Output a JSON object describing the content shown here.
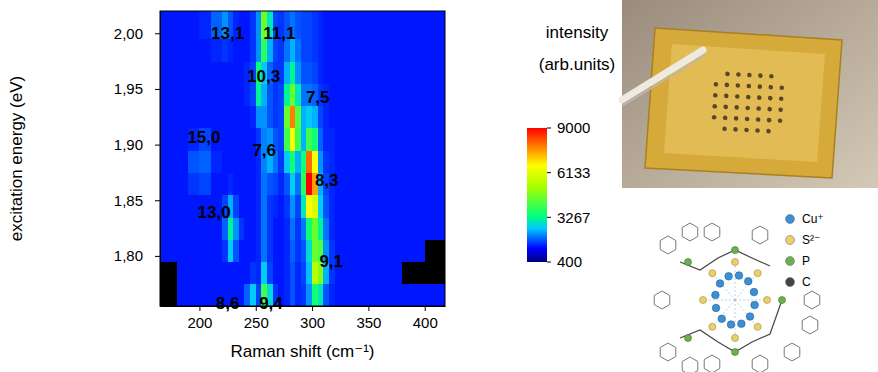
{
  "chart_data": {
    "type": "heatmap",
    "x_label": "Raman shift (cm⁻¹)",
    "y_label": "excitation energy (eV)",
    "xlim": [
      165,
      418
    ],
    "ylim": [
      1.755,
      2.02
    ],
    "xticks": [
      200,
      250,
      300,
      350,
      400
    ],
    "yticks": [
      {
        "value": 1.8,
        "label": "1,80"
      },
      {
        "value": 1.85,
        "label": "1,85"
      },
      {
        "value": 1.9,
        "label": "1,90"
      },
      {
        "value": 1.95,
        "label": "1,95"
      },
      {
        "value": 2.0,
        "label": "2,00"
      }
    ],
    "grid": false,
    "x_bins": [
      165,
      180,
      190,
      200,
      210,
      220,
      225,
      230,
      235,
      240,
      245,
      250,
      255,
      260,
      265,
      270,
      275,
      280,
      285,
      290,
      295,
      300,
      305,
      310,
      315,
      320,
      340,
      360,
      380,
      400,
      418
    ],
    "y_bins": [
      1.755,
      1.775,
      1.795,
      1.815,
      1.835,
      1.855,
      1.875,
      1.895,
      1.915,
      1.935,
      1.955,
      1.975,
      1.995,
      2.02
    ],
    "cells": [
      [
        300,
        1400,
        1400,
        1400,
        1400,
        1400,
        1400,
        1400,
        1400,
        1900,
        2600,
        1700,
        4000,
        2800,
        1600,
        1400,
        1500,
        1800,
        1500,
        1600,
        2200,
        3500,
        3000,
        1800,
        1500,
        1400,
        1400,
        1400,
        1400,
        1400
      ],
      [
        300,
        1400,
        1400,
        1400,
        1400,
        1400,
        1400,
        1400,
        1400,
        1400,
        1600,
        1500,
        2600,
        1700,
        1400,
        1400,
        1500,
        1800,
        1500,
        1700,
        2500,
        5500,
        4800,
        2400,
        1600,
        1400,
        1400,
        1400,
        300,
        300
      ],
      [
        1400,
        1400,
        1400,
        1400,
        1400,
        1600,
        2600,
        1800,
        1400,
        1400,
        1400,
        1500,
        2000,
        1600,
        1400,
        1400,
        1500,
        1900,
        1600,
        1800,
        2800,
        4500,
        4200,
        2200,
        1600,
        1400,
        1400,
        1400,
        1400,
        300
      ],
      [
        1400,
        1400,
        1400,
        1400,
        1400,
        1900,
        3200,
        2200,
        1600,
        1400,
        1400,
        1500,
        2000,
        1600,
        1400,
        1400,
        1500,
        2000,
        1600,
        2000,
        3500,
        4500,
        3200,
        2000,
        1500,
        1400,
        1400,
        1400,
        1400,
        1400
      ],
      [
        1400,
        1400,
        1400,
        1400,
        1400,
        1700,
        2400,
        1700,
        1400,
        1400,
        1400,
        1500,
        2000,
        1600,
        1500,
        1400,
        1600,
        2200,
        1700,
        3000,
        6500,
        6000,
        2600,
        1800,
        1500,
        1400,
        1400,
        1400,
        1400,
        1400
      ],
      [
        1400,
        1400,
        1600,
        1700,
        1400,
        1400,
        1500,
        1400,
        1400,
        1400,
        1400,
        1500,
        2000,
        1800,
        1700,
        1500,
        1800,
        2600,
        2000,
        3800,
        9000,
        7500,
        2400,
        1700,
        1500,
        1400,
        1400,
        1400,
        1400,
        1400
      ],
      [
        1400,
        1400,
        1800,
        1900,
        1500,
        1400,
        1400,
        1400,
        1400,
        1400,
        1400,
        1500,
        2100,
        2400,
        2000,
        1600,
        2600,
        3500,
        2400,
        3500,
        8000,
        6500,
        2200,
        1600,
        1500,
        1400,
        1400,
        1400,
        1400,
        1400
      ],
      [
        1400,
        1400,
        1500,
        1700,
        1400,
        1400,
        1400,
        1400,
        1400,
        1400,
        1400,
        1600,
        2100,
        2200,
        1800,
        1700,
        4000,
        6500,
        4000,
        2400,
        4000,
        3500,
        1900,
        1500,
        1500,
        1400,
        1400,
        1400,
        1400,
        1400
      ],
      [
        1400,
        1400,
        1400,
        1400,
        1400,
        1400,
        1400,
        1400,
        1400,
        1400,
        1500,
        2200,
        2200,
        1800,
        1600,
        1700,
        4500,
        7800,
        4200,
        2400,
        2600,
        2400,
        1700,
        1500,
        1400,
        1400,
        1400,
        1400,
        1400,
        1400
      ],
      [
        1400,
        1400,
        1400,
        1400,
        1400,
        1400,
        1400,
        1400,
        1400,
        1500,
        1700,
        3200,
        2400,
        1800,
        1600,
        1700,
        3200,
        4500,
        3000,
        2000,
        2000,
        1900,
        1600,
        1500,
        1400,
        1400,
        1400,
        1400,
        1400,
        1400
      ],
      [
        1400,
        1400,
        1400,
        1400,
        1400,
        1400,
        1400,
        1400,
        1400,
        1500,
        1700,
        3400,
        2600,
        1900,
        1600,
        1600,
        2400,
        3200,
        2200,
        1800,
        1800,
        1700,
        1500,
        1400,
        1400,
        1400,
        1400,
        1400,
        1400,
        1400
      ],
      [
        1400,
        1400,
        1400,
        1400,
        1500,
        1600,
        1500,
        1400,
        1400,
        1400,
        1600,
        2200,
        3800,
        2400,
        1700,
        1600,
        2000,
        2400,
        2000,
        1700,
        1700,
        1600,
        1500,
        1400,
        1400,
        1400,
        1400,
        1400,
        1400,
        1400
      ],
      [
        1400,
        1400,
        1400,
        1500,
        1900,
        2200,
        1800,
        1500,
        1400,
        1400,
        1600,
        2200,
        4500,
        3000,
        1700,
        1600,
        1800,
        2000,
        1800,
        1700,
        1700,
        1600,
        1500,
        1400,
        1400,
        1400,
        1400,
        1400,
        1400,
        1400
      ]
    ],
    "colorbar": {
      "title": [
        "intensity",
        "(arb.units)"
      ],
      "lim": [
        400,
        9000
      ],
      "ticks": [
        400,
        3267,
        6133,
        9000
      ]
    },
    "annotations": [
      {
        "text": "13,1",
        "x": 225,
        "y": 2.0
      },
      {
        "text": "11,1",
        "x": 271,
        "y": 2.0
      },
      {
        "text": "10,3",
        "x": 257,
        "y": 1.962
      },
      {
        "text": "7,5",
        "x": 305,
        "y": 1.943
      },
      {
        "text": "15,0",
        "x": 204,
        "y": 1.907
      },
      {
        "text": "7,6",
        "x": 257.5,
        "y": 1.895
      },
      {
        "text": "8,3",
        "x": 313,
        "y": 1.868
      },
      {
        "text": "13,0",
        "x": 213,
        "y": 1.839
      },
      {
        "text": "9,1",
        "x": 317,
        "y": 1.795
      },
      {
        "text": "8,6",
        "x": 225,
        "y": 1.758
      },
      {
        "text": "9,4",
        "x": 263.5,
        "y": 1.758
      }
    ]
  },
  "structure": {
    "legend": [
      {
        "label": "Cu⁺",
        "color": "#3a8fd6"
      },
      {
        "label": "S²⁻",
        "color": "#e8d070"
      },
      {
        "label": "P",
        "color": "#6ab04c"
      },
      {
        "label": "C",
        "color": "#444444"
      }
    ]
  }
}
